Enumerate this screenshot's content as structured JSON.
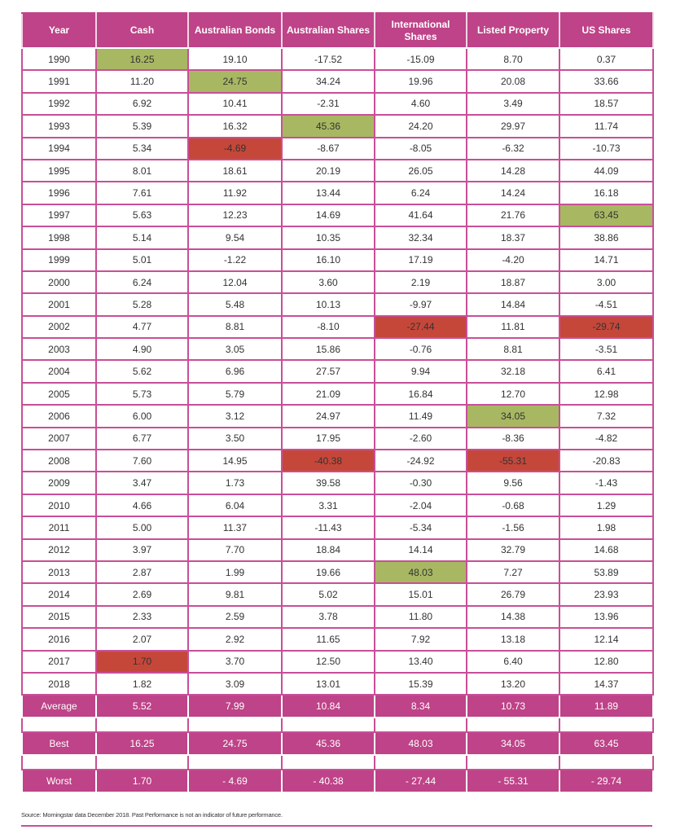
{
  "colors": {
    "header": "#be4388",
    "best": "#a8b862",
    "worst": "#c5473a"
  },
  "headers": [
    "Year",
    "Cash",
    "Australian Bonds",
    "Australian Shares",
    "International Shares",
    "Listed Property",
    "US Shares"
  ],
  "rows": [
    {
      "year": "1990",
      "values": [
        "16.25",
        "19.10",
        "-17.52",
        "-15.09",
        "8.70",
        "0.37"
      ],
      "best": [
        0
      ],
      "worst": []
    },
    {
      "year": "1991",
      "values": [
        "11.20",
        "24.75",
        "34.24",
        "19.96",
        "20.08",
        "33.66"
      ],
      "best": [
        1
      ],
      "worst": []
    },
    {
      "year": "1992",
      "values": [
        "6.92",
        "10.41",
        "-2.31",
        "4.60",
        "3.49",
        "18.57"
      ],
      "best": [],
      "worst": []
    },
    {
      "year": "1993",
      "values": [
        "5.39",
        "16.32",
        "45.36",
        "24.20",
        "29.97",
        "11.74"
      ],
      "best": [
        2
      ],
      "worst": []
    },
    {
      "year": "1994",
      "values": [
        "5.34",
        "-4.69",
        "-8.67",
        "-8.05",
        "-6.32",
        "-10.73"
      ],
      "best": [],
      "worst": [
        1
      ]
    },
    {
      "year": "1995",
      "values": [
        "8.01",
        "18.61",
        "20.19",
        "26.05",
        "14.28",
        "44.09"
      ],
      "best": [],
      "worst": []
    },
    {
      "year": "1996",
      "values": [
        "7.61",
        "11.92",
        "13.44",
        "6.24",
        "14.24",
        "16.18"
      ],
      "best": [],
      "worst": []
    },
    {
      "year": "1997",
      "values": [
        "5.63",
        "12.23",
        "14.69",
        "41.64",
        "21.76",
        "63.45"
      ],
      "best": [
        5
      ],
      "worst": []
    },
    {
      "year": "1998",
      "values": [
        "5.14",
        "9.54",
        "10.35",
        "32.34",
        "18.37",
        "38.86"
      ],
      "best": [],
      "worst": []
    },
    {
      "year": "1999",
      "values": [
        "5.01",
        "-1.22",
        "16.10",
        "17.19",
        "-4.20",
        "14.71"
      ],
      "best": [],
      "worst": []
    },
    {
      "year": "2000",
      "values": [
        "6.24",
        "12.04",
        "3.60",
        "2.19",
        "18.87",
        "3.00"
      ],
      "best": [],
      "worst": []
    },
    {
      "year": "2001",
      "values": [
        "5.28",
        "5.48",
        "10.13",
        "-9.97",
        "14.84",
        "-4.51"
      ],
      "best": [],
      "worst": []
    },
    {
      "year": "2002",
      "values": [
        "4.77",
        "8.81",
        "-8.10",
        "-27.44",
        "11.81",
        "-29.74"
      ],
      "best": [],
      "worst": [
        3,
        5
      ]
    },
    {
      "year": "2003",
      "values": [
        "4.90",
        "3.05",
        "15.86",
        "-0.76",
        "8.81",
        "-3.51"
      ],
      "best": [],
      "worst": []
    },
    {
      "year": "2004",
      "values": [
        "5.62",
        "6.96",
        "27.57",
        "9.94",
        "32.18",
        "6.41"
      ],
      "best": [],
      "worst": []
    },
    {
      "year": "2005",
      "values": [
        "5.73",
        "5.79",
        "21.09",
        "16.84",
        "12.70",
        "12.98"
      ],
      "best": [],
      "worst": []
    },
    {
      "year": "2006",
      "values": [
        "6.00",
        "3.12",
        "24.97",
        "11.49",
        "34.05",
        "7.32"
      ],
      "best": [
        4
      ],
      "worst": []
    },
    {
      "year": "2007",
      "values": [
        "6.77",
        "3.50",
        "17.95",
        "-2.60",
        "-8.36",
        "-4.82"
      ],
      "best": [],
      "worst": []
    },
    {
      "year": "2008",
      "values": [
        "7.60",
        "14.95",
        "-40.38",
        "-24.92",
        "-55.31",
        "-20.83"
      ],
      "best": [],
      "worst": [
        2,
        4
      ]
    },
    {
      "year": "2009",
      "values": [
        "3.47",
        "1.73",
        "39.58",
        "-0.30",
        "9.56",
        "-1.43"
      ],
      "best": [],
      "worst": []
    },
    {
      "year": "2010",
      "values": [
        "4.66",
        "6.04",
        "3.31",
        "-2.04",
        "-0.68",
        "1.29"
      ],
      "best": [],
      "worst": []
    },
    {
      "year": "2011",
      "values": [
        "5.00",
        "11.37",
        "-11.43",
        "-5.34",
        "-1.56",
        "1.98"
      ],
      "best": [],
      "worst": []
    },
    {
      "year": "2012",
      "values": [
        "3.97",
        "7.70",
        "18.84",
        "14.14",
        "32.79",
        "14.68"
      ],
      "best": [],
      "worst": []
    },
    {
      "year": "2013",
      "values": [
        "2.87",
        "1.99",
        "19.66",
        "48.03",
        "7.27",
        "53.89"
      ],
      "best": [
        3
      ],
      "worst": []
    },
    {
      "year": "2014",
      "values": [
        "2.69",
        "9.81",
        "5.02",
        "15.01",
        "26.79",
        "23.93"
      ],
      "best": [],
      "worst": []
    },
    {
      "year": "2015",
      "values": [
        "2.33",
        "2.59",
        "3.78",
        "11.80",
        "14.38",
        "13.96"
      ],
      "best": [],
      "worst": []
    },
    {
      "year": "2016",
      "values": [
        "2.07",
        "2.92",
        "11.65",
        "7.92",
        "13.18",
        "12.14"
      ],
      "best": [],
      "worst": []
    },
    {
      "year": "2017",
      "values": [
        "1.70",
        "3.70",
        "12.50",
        "13.40",
        "6.40",
        "12.80"
      ],
      "best": [],
      "worst": [
        0
      ]
    },
    {
      "year": "2018",
      "values": [
        "1.82",
        "3.09",
        "13.01",
        "15.39",
        "13.20",
        "14.37"
      ],
      "best": [],
      "worst": []
    }
  ],
  "summary": [
    {
      "label": "Average",
      "values": [
        "5.52",
        "7.99",
        "10.84",
        "8.34",
        "10.73",
        "11.89"
      ]
    },
    {
      "label": "Best",
      "values": [
        "16.25",
        "24.75",
        "45.36",
        "48.03",
        "34.05",
        "63.45"
      ]
    },
    {
      "label": "Worst",
      "values": [
        "1.70",
        "- 4.69",
        "- 40.38",
        "- 27.44",
        "- 55.31",
        "- 29.74"
      ]
    }
  ],
  "source": "Source: Morningstar data December 2018. Past Performance is not an indicator of future performance."
}
